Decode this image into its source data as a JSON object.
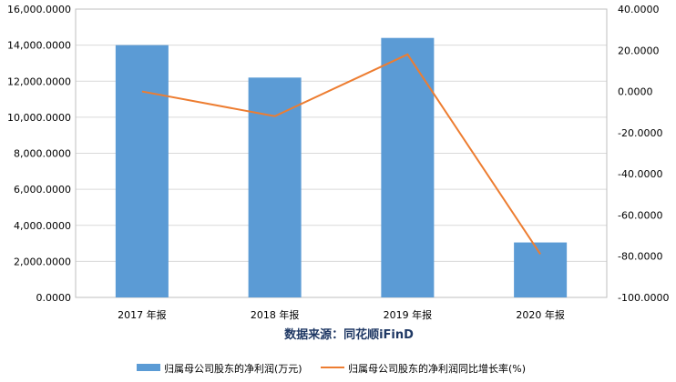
{
  "chart_data": {
    "type": "bar",
    "categories": [
      "2017 年报",
      "2018 年报",
      "2019 年报",
      "2020 年报"
    ],
    "series": [
      {
        "name": "归属母公司股东的净利润(万元)",
        "type": "bar",
        "axis": "left",
        "color": "#5b9bd5",
        "values": [
          14000,
          12200,
          14400,
          3050
        ]
      },
      {
        "name": "归属母公司股东的净利润同比增长率(%)",
        "type": "line",
        "axis": "right",
        "color": "#ed7d31",
        "values": [
          0,
          -12,
          18,
          -79
        ]
      }
    ],
    "y_left": {
      "min": 0,
      "max": 16000,
      "ticks": [
        "0.0000",
        "2,000.0000",
        "4,000.0000",
        "6,000.0000",
        "8,000.0000",
        "10,000.0000",
        "12,000.0000",
        "14,000.0000",
        "16,000.0000"
      ]
    },
    "y_right": {
      "min": -100,
      "max": 40,
      "ticks": [
        "-100.0000",
        "-80.0000",
        "-60.0000",
        "-40.0000",
        "-20.0000",
        "0.0000",
        "20.0000",
        "40.0000"
      ]
    },
    "annotation": "数据来源：同花顺iFinD",
    "grid": true,
    "legend_position": "bottom"
  }
}
